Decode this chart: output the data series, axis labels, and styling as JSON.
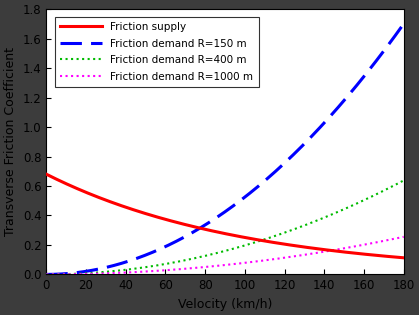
{
  "xlabel": "Velocity (km/h)",
  "ylabel": "Transverse Friction Coefficient",
  "xlim": [
    0,
    180
  ],
  "ylim": [
    0,
    1.8
  ],
  "xticks": [
    0,
    20,
    40,
    60,
    80,
    100,
    120,
    140,
    160,
    180
  ],
  "yticks": [
    0.0,
    0.2,
    0.4,
    0.6,
    0.8,
    1.0,
    1.2,
    1.4,
    1.6,
    1.8
  ],
  "v_start": 0,
  "v_end": 180,
  "R_values": [
    150,
    400,
    1000
  ],
  "supply_A": 0.68,
  "supply_b": 0.00998,
  "supply_color": "#ff0000",
  "supply_lw": 2.2,
  "demand_colors": [
    "#0000ff",
    "#00bb00",
    "#ff00ff"
  ],
  "demand_lws": [
    2.2,
    1.5,
    1.5
  ],
  "legend_labels": [
    "Friction supply",
    "Friction demand R=150 m",
    "Friction demand R=400 m",
    "Friction demand R=1000 m"
  ],
  "fig_bg_color": "#c8c8c8",
  "axes_bg_color": "#ffffff",
  "figsize": [
    4.19,
    3.15
  ],
  "dpi": 100,
  "legend_bg": "#1a1a2e",
  "font_color": "#000000"
}
